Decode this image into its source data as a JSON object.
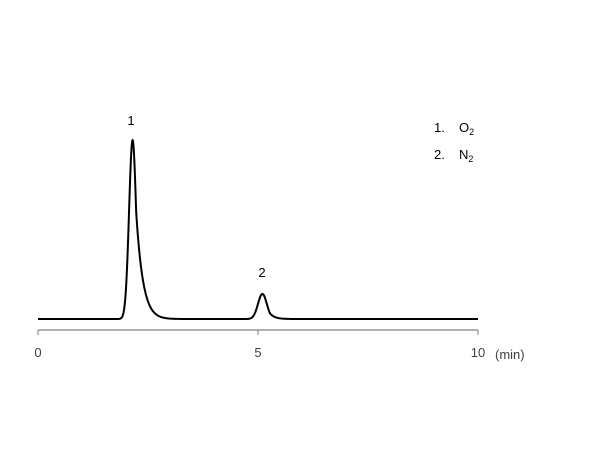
{
  "chart_data": {
    "type": "line",
    "title": "",
    "xlabel": "(min)",
    "ylabel": "",
    "xlim": [
      0,
      10
    ],
    "x_ticks": [
      "0",
      "5",
      "10"
    ],
    "y_axis_visible": false,
    "grid": false,
    "baseline": 0,
    "peaks": [
      {
        "label": "1",
        "retention_time": 2.15,
        "height": 100,
        "rise_width": 0.08,
        "tail_decay": 0.16
      },
      {
        "label": "2",
        "retention_time": 5.1,
        "height": 14,
        "rise_width": 0.1,
        "tail_decay": 0.12
      }
    ],
    "legend": [
      {
        "number": "1.",
        "compound": "O",
        "subscript": "2"
      },
      {
        "number": "2.",
        "compound": "N",
        "subscript": "2"
      }
    ],
    "legend_position": "top-right",
    "line_color": "#000000",
    "axis_color": "#808080"
  }
}
